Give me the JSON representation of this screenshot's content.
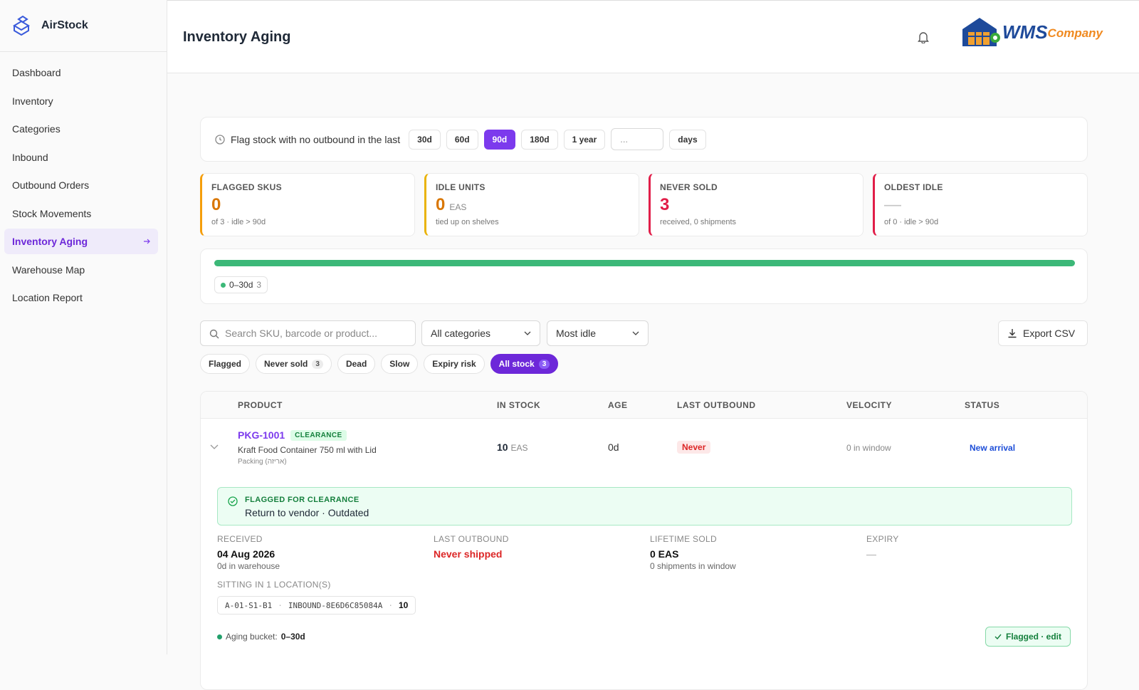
{
  "sidebar": {
    "brand": "AirStock",
    "nav": [
      "Dashboard",
      "Inventory",
      "Categories",
      "Inbound",
      "Outbound Orders",
      "Stock Movements",
      "Inventory Aging",
      "Warehouse Map",
      "Location Report"
    ],
    "active_index": 6
  },
  "header": {
    "title": "Inventory Aging",
    "logo": {
      "primary": "WMS",
      "secondary": "Company"
    }
  },
  "threshold": {
    "label": "Flag stock with no outbound in the last",
    "options": [
      "30d",
      "60d",
      "90d",
      "180d",
      "1 year"
    ],
    "selected": 2,
    "custom_placeholder": "...",
    "unit": "days"
  },
  "stats": [
    {
      "label": "FLAGGED SKUS",
      "value": 0,
      "note": "of 3 · idle > 90d",
      "color": "#f59e0b",
      "value_color": "#d97706"
    },
    {
      "label": "IDLE UNITS",
      "value": 0,
      "unit": "EAS",
      "note": "tied up on shelves",
      "color": "#eab308",
      "value_color": "#d97706"
    },
    {
      "label": "NEVER SOLD",
      "value": 3,
      "note": "received, 0 shipments",
      "color": "#e11d48",
      "value_color": "#e11d48"
    },
    {
      "label": "OLDEST IDLE",
      "value": "—",
      "note": "of 0 · idle > 90d",
      "color": "#e11d48",
      "value_color": "#c4c4c4"
    }
  ],
  "aging_buckets": [
    {
      "label": "0–30d",
      "count": 3,
      "color": "#3cb878"
    }
  ],
  "toolbar": {
    "search_placeholder": "Search SKU, barcode or product...",
    "category_filter": "All categories",
    "sort": "Most idle",
    "export": "Export CSV"
  },
  "chips": [
    {
      "label": "Flagged"
    },
    {
      "label": "Never sold",
      "count": 3
    },
    {
      "label": "Dead"
    },
    {
      "label": "Slow"
    },
    {
      "label": "Expiry risk"
    },
    {
      "label": "All stock",
      "count": 3
    }
  ],
  "active_chip": 5,
  "table": {
    "columns": [
      "PRODUCT",
      "IN STOCK",
      "AGE",
      "LAST OUTBOUND",
      "VELOCITY",
      "STATUS"
    ],
    "rows": [
      {
        "sku": "PKG-1001",
        "tag": "CLEARANCE",
        "name": "Kraft Food Container 750 ml with Lid",
        "category": "Packing (אריזה)",
        "in_stock": 10,
        "unit": "EAS",
        "age": "0d",
        "last_outbound": "Never",
        "velocity": "0 in window",
        "status": "New arrival",
        "detail": {
          "flag_title": "FLAGGED FOR CLEARANCE",
          "flag_text": "Return to vendor · Outdated",
          "fields": [
            {
              "label": "RECEIVED",
              "value": "04 Aug 2026",
              "note": "0d in warehouse"
            },
            {
              "label": "LAST OUTBOUND",
              "value": "Never shipped"
            },
            {
              "label": "LIFETIME SOLD",
              "value": "0 EAS",
              "note": "0 shipments in window"
            },
            {
              "label": "EXPIRY",
              "value": "—"
            }
          ],
          "locations_label": "SITTING IN 1 LOCATION(S)",
          "locations": [
            {
              "code": "A-01-S1-B1",
              "license": "INBOUND-8E6D6C85084A",
              "qty": 10
            }
          ],
          "bucket_label": "Aging bucket:",
          "bucket": "0–30d",
          "action": "Flagged · edit"
        }
      }
    ]
  }
}
